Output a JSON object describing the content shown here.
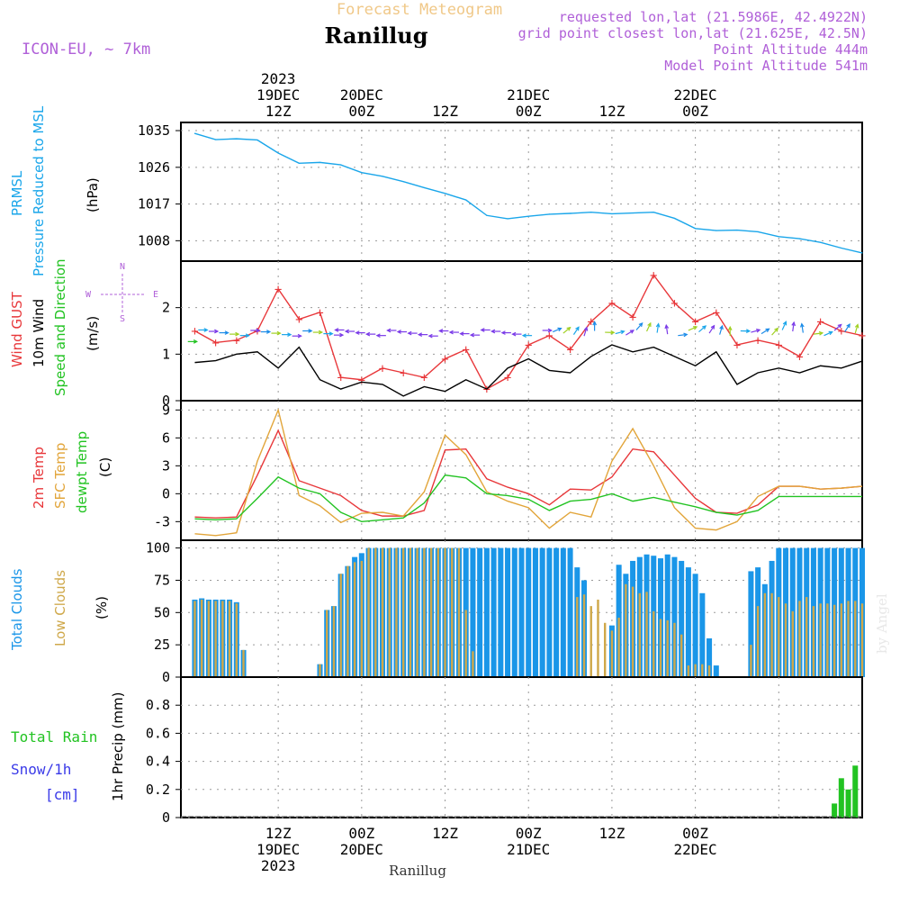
{
  "header": {
    "forecast_title": "Forecast Meteogram",
    "station": "Ranillug",
    "model": "ICON-EU, ~ 7km",
    "requested": "requested lon,lat (21.5986E, 42.4922N)",
    "grid_point": "grid point closest lon,lat (21.625E, 42.5N)",
    "point_alt": "Point Altitude 444m",
    "model_alt": "Model Point Altitude 541m",
    "footer_station": "Ranillug",
    "watermark": "by Angel"
  },
  "time_axis": {
    "top_labels": [
      {
        "lines": [
          "2023",
          "19DEC",
          "12Z"
        ]
      },
      {
        "lines": [
          "20DEC",
          "00Z"
        ]
      },
      {
        "lines": [
          "12Z"
        ]
      },
      {
        "lines": [
          "21DEC",
          "00Z"
        ]
      },
      {
        "lines": [
          "12Z"
        ]
      },
      {
        "lines": [
          "22DEC",
          "00Z"
        ]
      }
    ],
    "bottom_labels": [
      {
        "lines": [
          "12Z",
          "19DEC",
          "2023"
        ]
      },
      {
        "lines": [
          "00Z",
          "20DEC"
        ]
      },
      {
        "lines": [
          "12Z"
        ]
      },
      {
        "lines": [
          "00Z",
          "21DEC"
        ]
      },
      {
        "lines": [
          "12Z"
        ]
      },
      {
        "lines": [
          "00Z",
          "22DEC"
        ]
      }
    ]
  },
  "panel_labels": {
    "pressure": {
      "name_line1": "PRMSL",
      "name_line2": "Pressure Reduced to MSL",
      "unit": "(hPa)"
    },
    "wind": {
      "gust": "Wind GUST",
      "wind10": "10m Wind",
      "speed_dir": "Speed and Direction",
      "unit": "(m/s)",
      "compass_n": "N",
      "compass_s": "S",
      "compass_w": "W",
      "compass_e": "E"
    },
    "temp": {
      "t2m": "2m Temp",
      "sfc": "SFC Temp",
      "dewpt": "dewpt Temp",
      "unit": "(C)"
    },
    "clouds": {
      "total": "Total Clouds",
      "low": "Low Clouds",
      "unit": "(%)"
    },
    "precip": {
      "rain": "Total Rain",
      "snow": "Snow/1h",
      "snow_unit": "[cm]",
      "name": "1hr Precip (mm)"
    }
  },
  "colors": {
    "pressure": "#1aa6ea",
    "gust": "#e8373a",
    "wind10": "#000000",
    "t2m": "#e8373a",
    "sfc": "#e2a53a",
    "dewpt": "#22c322",
    "total_clouds": "#1a96e8",
    "low_clouds": "#cfa84a",
    "rain": "#22c322",
    "snow": "#3a3ae8",
    "meta": "#b060d8",
    "title_faded": "#f0c888"
  },
  "chart_data": [
    {
      "type": "line",
      "panel": "pressure",
      "ylim": [
        1003,
        1037
      ],
      "yticks": [
        "1035",
        "1026",
        "1017",
        "1008"
      ],
      "yticks_values": [
        1035,
        1026,
        1017,
        1008
      ],
      "x_hours": [
        0,
        3,
        6,
        9,
        12,
        15,
        18,
        21,
        24,
        27,
        30,
        33,
        36,
        39,
        42,
        45,
        48,
        51,
        54,
        57,
        60,
        63,
        66,
        69,
        72,
        75,
        78,
        81,
        84,
        87,
        90,
        93,
        96
      ],
      "series": [
        {
          "values": [
            1034.3,
            1032.8,
            1033,
            1032.7,
            1029.5,
            1027,
            1027.2,
            1026.6,
            1024.7,
            1023.8,
            1022.5,
            1021,
            1019.6,
            1018,
            1014.2,
            1013.4,
            1014,
            1014.5,
            1014.7,
            1015,
            1014.6,
            1014.8,
            1015,
            1013.5,
            1011,
            1010.5,
            1010.6,
            1010.2,
            1009,
            1008.5,
            1007.6,
            1006.2,
            1005
          ]
        }
      ]
    },
    {
      "type": "line",
      "panel": "wind",
      "ylim": [
        0,
        3
      ],
      "yticks": [
        "0",
        "1",
        "2"
      ],
      "yticks_values": [
        0,
        1,
        2
      ],
      "x_hours": [
        0,
        3,
        6,
        9,
        12,
        15,
        18,
        21,
        24,
        27,
        30,
        33,
        36,
        39,
        42,
        45,
        48,
        51,
        54,
        57,
        60,
        63,
        66,
        69,
        72,
        75,
        78,
        81,
        84,
        87,
        90,
        93,
        96
      ],
      "series": [
        {
          "name": "Wind GUST",
          "values": [
            1.5,
            1.25,
            1.3,
            1.5,
            2.4,
            1.75,
            1.9,
            0.5,
            0.45,
            0.7,
            0.6,
            0.5,
            0.9,
            1.1,
            0.25,
            0.5,
            1.2,
            1.4,
            1.1,
            1.7,
            2.1,
            1.8,
            2.7,
            2.1,
            1.7,
            1.9,
            1.2,
            1.3,
            1.2,
            0.95,
            1.7,
            1.5,
            1.4
          ]
        },
        {
          "name": "10m Wind",
          "values": [
            0.82,
            0.86,
            1.0,
            1.05,
            0.7,
            1.15,
            0.45,
            0.25,
            0.4,
            0.35,
            0.1,
            0.3,
            0.2,
            0.45,
            0.25,
            0.7,
            0.9,
            0.65,
            0.6,
            0.95,
            1.2,
            1.05,
            1.15,
            0.95,
            0.75,
            1.05,
            0.35,
            0.6,
            0.7,
            0.6,
            0.75,
            0.7,
            0.85
          ]
        }
      ],
      "direction_arrows_present": true
    },
    {
      "type": "line",
      "panel": "temp",
      "ylim": [
        -5,
        10
      ],
      "yticks": [
        "9",
        "6",
        "3",
        "0",
        "-3"
      ],
      "yticks_values": [
        9,
        6,
        3,
        0,
        -3
      ],
      "x_hours": [
        0,
        3,
        6,
        9,
        12,
        15,
        18,
        21,
        24,
        27,
        30,
        33,
        36,
        39,
        42,
        45,
        48,
        51,
        54,
        57,
        60,
        63,
        66,
        69,
        72,
        75,
        78,
        81,
        84,
        87,
        90,
        93,
        96
      ],
      "series": [
        {
          "name": "2m Temp",
          "values": [
            -2.5,
            -2.6,
            -2.5,
            2.0,
            6.8,
            1.4,
            0.6,
            -0.2,
            -1.8,
            -2.4,
            -2.4,
            -1.8,
            4.7,
            4.8,
            1.6,
            0.7,
            0.0,
            -1.2,
            0.5,
            0.4,
            1.8,
            4.8,
            4.5,
            2.0,
            -0.5,
            -2.0,
            -2.1,
            -1.2,
            0.8,
            0.8,
            0.5,
            0.6,
            0.8
          ]
        },
        {
          "name": "SFC Temp",
          "values": [
            -4.3,
            -4.5,
            -4.2,
            3.5,
            9.0,
            -0.2,
            -1.3,
            -3.1,
            -2.1,
            -2.0,
            -2.4,
            0.2,
            6.3,
            4.2,
            0.2,
            -0.8,
            -1.5,
            -3.7,
            -2.0,
            -2.5,
            3.5,
            7.0,
            3.0,
            -1.5,
            -3.7,
            -3.9,
            -3.0,
            -0.3,
            0.8,
            0.8,
            0.5,
            0.6,
            0.8
          ]
        },
        {
          "name": "dewpt Temp",
          "values": [
            -2.7,
            -2.8,
            -2.7,
            -0.5,
            1.8,
            0.6,
            0.0,
            -2.0,
            -3.0,
            -2.8,
            -2.6,
            -1.0,
            2.0,
            1.7,
            0.0,
            -0.2,
            -0.6,
            -1.8,
            -0.8,
            -0.6,
            0.0,
            -0.8,
            -0.4,
            -0.9,
            -1.4,
            -2.0,
            -2.3,
            -1.8,
            -0.3,
            -0.3,
            -0.3,
            -0.3,
            -0.3
          ]
        }
      ]
    },
    {
      "type": "bar",
      "panel": "clouds",
      "ylim": [
        0,
        106
      ],
      "yticks": [
        "100",
        "75",
        "50",
        "25",
        "0"
      ],
      "yticks_values": [
        100,
        75,
        50,
        25,
        0
      ],
      "x_hours": [
        0,
        1,
        2,
        3,
        4,
        5,
        6,
        7,
        8,
        9,
        10,
        11,
        12,
        13,
        14,
        15,
        16,
        17,
        18,
        19,
        20,
        21,
        22,
        23,
        24,
        25,
        26,
        27,
        28,
        29,
        30,
        31,
        32,
        33,
        34,
        35,
        36,
        37,
        38,
        39,
        40,
        41,
        42,
        43,
        44,
        45,
        46,
        47,
        48,
        49,
        50,
        51,
        52,
        53,
        54,
        55,
        56,
        57,
        58,
        59,
        60,
        61,
        62,
        63,
        64,
        65,
        66,
        67,
        68,
        69,
        70,
        71,
        72,
        73,
        74,
        75,
        76,
        77,
        78,
        79,
        80,
        81,
        82,
        83,
        84,
        85,
        86,
        87,
        88,
        89,
        90,
        91,
        92,
        93,
        94,
        95,
        96
      ],
      "series": [
        {
          "name": "Total Clouds",
          "values": [
            60,
            61,
            60,
            60,
            60,
            60,
            58,
            21,
            0,
            0,
            0,
            0,
            0,
            0,
            0,
            0,
            0,
            0,
            10,
            52,
            55,
            80,
            86,
            93,
            96,
            100,
            100,
            100,
            100,
            100,
            100,
            100,
            100,
            100,
            100,
            100,
            100,
            100,
            100,
            100,
            100,
            100,
            100,
            100,
            100,
            100,
            100,
            100,
            100,
            100,
            100,
            100,
            100,
            100,
            100,
            85,
            75,
            0,
            0,
            0,
            40,
            87,
            80,
            90,
            93,
            95,
            94,
            92,
            95,
            93,
            90,
            85,
            80,
            65,
            30,
            9,
            0,
            0,
            0,
            0,
            82,
            85,
            72,
            90,
            100,
            100,
            100,
            100,
            100,
            100,
            100,
            100,
            100,
            100,
            100,
            100,
            100
          ]
        },
        {
          "name": "Low Clouds",
          "values": [
            59,
            60,
            59,
            59,
            59,
            59,
            57,
            21,
            0,
            0,
            0,
            0,
            0,
            0,
            0,
            0,
            0,
            0,
            10,
            52,
            55,
            80,
            86,
            89,
            90,
            100,
            100,
            100,
            100,
            100,
            100,
            100,
            100,
            100,
            100,
            100,
            100,
            100,
            100,
            52,
            20,
            0,
            0,
            0,
            0,
            0,
            0,
            0,
            0,
            0,
            0,
            0,
            0,
            0,
            0,
            62,
            64,
            55,
            60,
            42,
            36,
            46,
            72,
            70,
            65,
            66,
            51,
            45,
            44,
            42,
            33,
            9,
            10,
            10,
            9,
            0,
            0,
            0,
            0,
            0,
            25,
            55,
            65,
            65,
            62,
            57,
            51,
            59,
            62,
            55,
            57,
            57,
            56,
            57,
            59,
            59,
            57
          ]
        }
      ]
    },
    {
      "type": "bar",
      "panel": "precip",
      "ylim": [
        0,
        1
      ],
      "yticks": [
        "0.8",
        "0.6",
        "0.4",
        "0.2",
        "0"
      ],
      "yticks_values": [
        0.8,
        0.6,
        0.4,
        0.2,
        0
      ],
      "x_hours": [
        90,
        91,
        92,
        93,
        94,
        95,
        96
      ],
      "series": [
        {
          "name": "Total Rain",
          "values": [
            0.0,
            0.0,
            0.1,
            0.28,
            0.2,
            0.37,
            0.0
          ]
        }
      ]
    }
  ]
}
